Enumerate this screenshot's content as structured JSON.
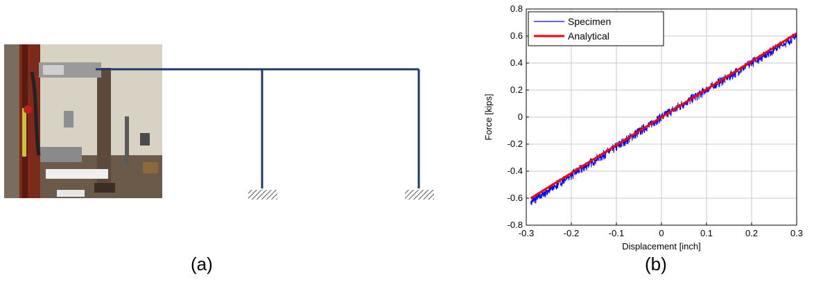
{
  "captions": {
    "a": "(a)",
    "b": "(b)"
  },
  "colors": {
    "frame": "#1f3a66",
    "specimen": "#0000ff",
    "analytical": "#ff0000"
  },
  "chart_data": {
    "type": "line",
    "title": "",
    "xlabel": "Displacement [inch]",
    "ylabel": "Force [kips]",
    "xlim": [
      -0.3,
      0.3
    ],
    "ylim": [
      -0.8,
      0.8
    ],
    "xticks": [
      "-0.3",
      "-0.2",
      "-0.1",
      "0",
      "0.1",
      "0.2",
      "0.3"
    ],
    "yticks": [
      "0.8",
      "0.6",
      "0.4",
      "0.2",
      "0",
      "-0.2",
      "-0.4",
      "-0.6",
      "-0.8"
    ],
    "grid": true,
    "legend_position": "top-left",
    "series": [
      {
        "name": "Specimen",
        "color": "#0000ff",
        "style": "noisy-line",
        "x": [
          -0.29,
          -0.2,
          -0.1,
          0,
          0.1,
          0.2,
          0.3
        ],
        "y": [
          -0.63,
          -0.43,
          -0.22,
          0.0,
          0.2,
          0.4,
          0.6
        ]
      },
      {
        "name": "Analytical",
        "color": "#ff0000",
        "style": "thick-line",
        "x": [
          -0.29,
          0.3
        ],
        "y": [
          -0.6,
          0.62
        ]
      }
    ]
  }
}
